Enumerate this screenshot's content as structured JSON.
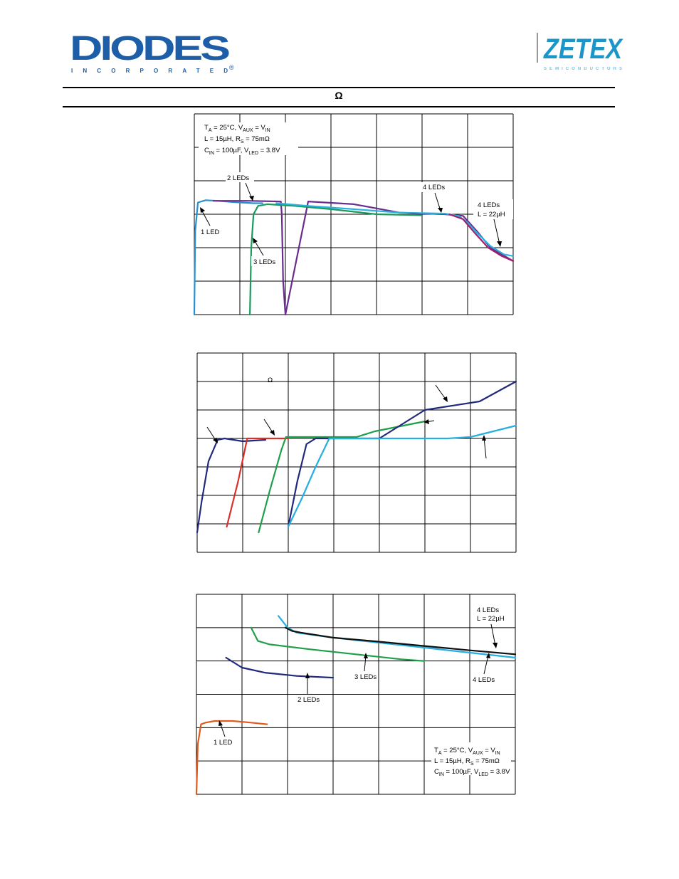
{
  "header": {
    "left_logo_text": "DIODES",
    "left_logo_subtext": "INCORPORATED",
    "right_logo_text": "ZETEX",
    "right_logo_subtext": "SEMICONDUCTORS",
    "title_symbol": "Ω"
  },
  "colors": {
    "logo_blue": "#1d5ea8",
    "zetex_teal": "#1b96c9",
    "one_led": "#2a8fd0",
    "two_leds": "#6a2d8f",
    "three_leds": "#1a9a5c",
    "four_leds": "#2bb1e0",
    "four_leds_22uH": "#a0206a",
    "navy": "#22297a",
    "red": "#d8312a",
    "green": "#1f9f4a",
    "cyan": "#27aee0",
    "orange": "#e05a1e",
    "black": "#101010"
  },
  "charts": {
    "chart1": {
      "cond_line1": "T",
      "cond_line1_sub": "A",
      "cond_line1_rest": " = 25°C, V",
      "cond_line1_sub2": "AUX",
      "cond_line1_rest2": " = V",
      "cond_line1_sub3": "IN",
      "cond_line2": "L = 15µH, R",
      "cond_line2_sub": "S",
      "cond_line2_rest": " = 75mΩ",
      "cond_line3": "C",
      "cond_line3_sub": "IN",
      "cond_line3_rest": " = 100µF, V",
      "cond_line3_sub2": "LED",
      "cond_line3_rest2": " = 3.8V",
      "label_2leds": "2 LEDs",
      "label_1led": "1 LED",
      "label_3leds": "3 LEDs",
      "label_4leds": "4 LEDs",
      "label_4leds_22": "4 LEDs",
      "label_4leds_22_l": "L = 22µH"
    },
    "chart2": {
      "omega": "Ω"
    },
    "chart3": {
      "label_4leds_22": "4 LEDs",
      "label_4leds_22_l": "L = 22µH",
      "label_3leds": "3 LEDs",
      "label_4leds": "4 LEDs",
      "label_2leds": "2 LEDs",
      "label_1led": "1 LED",
      "cond_line1": "T",
      "cond_line1_sub": "A",
      "cond_line1_rest": " = 25°C, V",
      "cond_line1_sub2": "AUX",
      "cond_line1_rest2": " = V",
      "cond_line1_sub3": "IN",
      "cond_line2": "L = 15µH, R",
      "cond_line2_sub": "S",
      "cond_line2_rest": " = 75mΩ",
      "cond_line3": "C",
      "cond_line3_sub": "IN",
      "cond_line3_rest": " = 100µF, V",
      "cond_line3_sub2": "LED",
      "cond_line3_rest2": " = 3.8V"
    }
  },
  "chart_data": [
    {
      "type": "line",
      "title": "",
      "xlabel": "",
      "ylabel": "",
      "xlim": [
        0,
        7
      ],
      "ylim": [
        0,
        6
      ],
      "grid": true,
      "series": [
        {
          "name": "1 LED",
          "color": "#2a8fd0",
          "x": [
            0.0,
            0.02,
            0.08,
            0.25,
            0.5,
            0.9,
            1.3,
            1.5
          ],
          "y": [
            0.0,
            2.5,
            3.35,
            3.42,
            3.4,
            3.36,
            3.33,
            3.33
          ]
        },
        {
          "name": "2 LEDs",
          "color": "#6a2d8f",
          "x": [
            0.42,
            1.2,
            1.9,
            1.92,
            1.95,
            2.0,
            2.5,
            3.5,
            4.5,
            5.5,
            5.9,
            6.2,
            6.5,
            7.0
          ],
          "y": [
            3.4,
            3.4,
            3.38,
            3.0,
            1.0,
            0.0,
            3.38,
            3.3,
            3.05,
            3.0,
            2.95,
            2.5,
            2.0,
            1.6
          ]
        },
        {
          "name": "3 LEDs",
          "color": "#1a9a5c",
          "x": [
            1.22,
            1.25,
            1.3,
            1.4,
            1.6,
            2.2,
            3.0,
            4.0,
            5.0
          ],
          "y": [
            0.0,
            2.0,
            3.0,
            3.25,
            3.3,
            3.25,
            3.15,
            3.0,
            2.97
          ]
        },
        {
          "name": "4 LEDs",
          "color": "#2bb1e0",
          "x": [
            1.8,
            2.5,
            3.5,
            4.5,
            5.5,
            5.8,
            6.0,
            6.2,
            6.5,
            6.8,
            7.0
          ],
          "y": [
            3.33,
            3.25,
            3.15,
            3.05,
            3.02,
            2.95,
            2.75,
            2.45,
            2.05,
            1.8,
            1.75
          ]
        },
        {
          "name": "4 LEDs L = 22µH",
          "color": "#a0206a",
          "x": [
            5.6,
            5.9,
            6.15,
            6.45,
            6.75,
            7.0
          ],
          "y": [
            3.0,
            2.85,
            2.45,
            2.0,
            1.75,
            1.6
          ]
        }
      ]
    },
    {
      "type": "line",
      "title": "",
      "xlabel": "",
      "ylabel": "",
      "xlim": [
        0,
        7
      ],
      "ylim": [
        0,
        7
      ],
      "grid": true,
      "series": [
        {
          "name": "",
          "color": "#22297a",
          "x": [
            0.0,
            0.1,
            0.25,
            0.45,
            0.6,
            1.0,
            1.5
          ],
          "y": [
            0.7,
            1.8,
            3.2,
            3.95,
            4.0,
            3.9,
            3.95
          ]
        },
        {
          "name": "",
          "color": "#d8312a",
          "x": [
            0.65,
            0.9,
            1.1,
            1.6,
            2.0
          ],
          "y": [
            0.9,
            2.5,
            4.0,
            4.0,
            4.0
          ]
        },
        {
          "name": "",
          "color": "#1f9f4a",
          "x": [
            1.35,
            1.6,
            1.85,
            1.95,
            2.5,
            3.5,
            3.9,
            5.0
          ],
          "y": [
            0.7,
            2.2,
            3.6,
            4.05,
            4.05,
            4.05,
            4.25,
            4.6
          ]
        },
        {
          "name": "",
          "color": "#22297a",
          "x": [
            2.0,
            2.2,
            2.4,
            2.6,
            3.0,
            4.0,
            5.0,
            6.2,
            7.0
          ],
          "y": [
            0.9,
            2.5,
            3.8,
            4.0,
            4.0,
            4.0,
            5.0,
            5.3,
            6.0
          ]
        },
        {
          "name": "",
          "color": "#27aee0",
          "x": [
            2.0,
            2.3,
            2.6,
            2.9,
            3.5,
            4.5,
            5.5,
            6.0,
            7.0
          ],
          "y": [
            0.9,
            1.9,
            3.0,
            4.0,
            4.0,
            4.0,
            4.0,
            4.05,
            4.45
          ]
        }
      ]
    },
    {
      "type": "line",
      "title": "",
      "xlabel": "",
      "ylabel": "",
      "xlim": [
        0,
        7
      ],
      "ylim": [
        0,
        6
      ],
      "grid": true,
      "series": [
        {
          "name": "1 LED",
          "color": "#e05a1e",
          "x": [
            0.0,
            0.03,
            0.1,
            0.2,
            0.4,
            0.8,
            1.2,
            1.55
          ],
          "y": [
            0.0,
            1.5,
            2.1,
            2.15,
            2.2,
            2.2,
            2.15,
            2.1
          ]
        },
        {
          "name": "2 LEDs",
          "color": "#22297a",
          "x": [
            0.65,
            1.0,
            1.5,
            2.2,
            3.0
          ],
          "y": [
            4.1,
            3.8,
            3.65,
            3.55,
            3.5
          ]
        },
        {
          "name": "3 LEDs",
          "color": "#1f9f4a",
          "x": [
            1.2,
            1.35,
            1.6,
            2.5,
            3.5,
            4.5,
            5.0
          ],
          "y": [
            5.0,
            4.6,
            4.5,
            4.35,
            4.2,
            4.05,
            4.0
          ]
        },
        {
          "name": "4 LEDs",
          "color": "#27aee0",
          "x": [
            1.8,
            2.0,
            2.2,
            3.0,
            4.0,
            5.0,
            6.0,
            7.0
          ],
          "y": [
            5.35,
            5.0,
            4.85,
            4.7,
            4.55,
            4.4,
            4.25,
            4.1
          ]
        },
        {
          "name": "4 LEDs L = 22µH",
          "color": "#101010",
          "x": [
            1.95,
            2.1,
            2.3,
            3.0,
            4.0,
            5.0,
            6.0,
            7.0
          ],
          "y": [
            5.0,
            4.9,
            4.85,
            4.7,
            4.58,
            4.45,
            4.32,
            4.2
          ]
        }
      ]
    }
  ]
}
